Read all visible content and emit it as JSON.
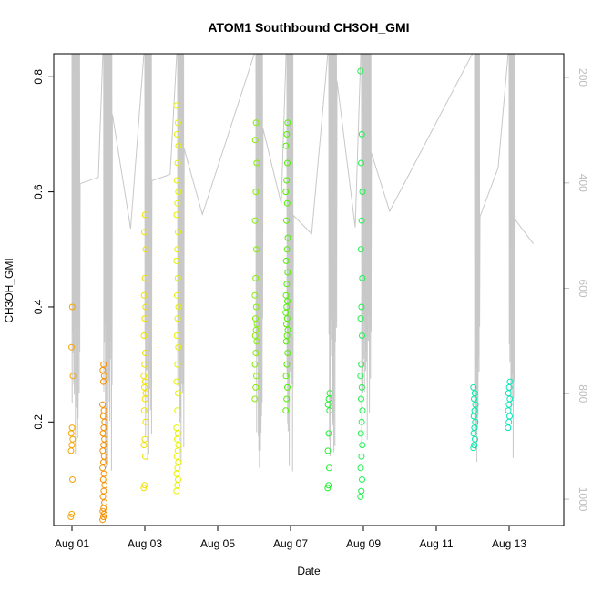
{
  "chart_data": {
    "type": "scatter",
    "title": "ATOM1 Southbound CH3OH_GMI",
    "xlabel": "Date",
    "ylabel": "CH3OH_GMI",
    "x_axis": {
      "unit": "days since Aug 01",
      "range": [
        -0.5,
        13.5
      ],
      "ticks": [
        0,
        2,
        4,
        6,
        8,
        10,
        12
      ],
      "tick_labels": [
        "Aug 01",
        "Aug 03",
        "Aug 05",
        "Aug 07",
        "Aug 09",
        "Aug 11",
        "Aug 13"
      ]
    },
    "y_axis": {
      "range": [
        0.02,
        0.84
      ],
      "ticks": [
        0.2,
        0.4,
        0.6,
        0.8
      ],
      "tick_labels": [
        "0.2",
        "0.4",
        "0.6",
        "0.8"
      ]
    },
    "right_axis": {
      "label": "",
      "range": [
        1050,
        155
      ],
      "ticks": [
        200,
        400,
        600,
        800,
        1000
      ],
      "tick_labels": [
        "200",
        "400",
        "600",
        "800",
        "1000"
      ],
      "color": "#bdbdbd"
    },
    "grid": false,
    "legend": "none",
    "altitude_line_color": "#c8c8c8",
    "series": [
      {
        "day": 0.0,
        "color": "#f5a300",
        "values": [
          0.035,
          0.04,
          0.1,
          0.15,
          0.16,
          0.17,
          0.18,
          0.19,
          0.28,
          0.33,
          0.4
        ]
      },
      {
        "day": 0.87,
        "color": "#f59000",
        "values": [
          0.03,
          0.035,
          0.04,
          0.045,
          0.05,
          0.06,
          0.07,
          0.08,
          0.09,
          0.1,
          0.11,
          0.12,
          0.13,
          0.14,
          0.15,
          0.16,
          0.17,
          0.18,
          0.19,
          0.2,
          0.21,
          0.22,
          0.23,
          0.27,
          0.28,
          0.29,
          0.3
        ]
      },
      {
        "day": 2.0,
        "color": "#f0e000",
        "values": [
          0.085,
          0.09,
          0.14,
          0.16,
          0.17,
          0.2,
          0.22,
          0.24,
          0.25,
          0.26,
          0.27,
          0.28,
          0.3,
          0.32,
          0.35,
          0.38,
          0.4,
          0.42,
          0.45,
          0.5,
          0.53,
          0.56
        ]
      },
      {
        "day": 2.9,
        "color": "#e6f000",
        "values": [
          0.08,
          0.09,
          0.1,
          0.11,
          0.12,
          0.13,
          0.14,
          0.15,
          0.16,
          0.17,
          0.18,
          0.19,
          0.22,
          0.25,
          0.27,
          0.3,
          0.33,
          0.35,
          0.38,
          0.4,
          0.42,
          0.45,
          0.48,
          0.5,
          0.53,
          0.56,
          0.58,
          0.6,
          0.62,
          0.65,
          0.68,
          0.7,
          0.72,
          0.75
        ]
      },
      {
        "day": 5.05,
        "color": "#80f000",
        "values": [
          0.24,
          0.26,
          0.28,
          0.3,
          0.32,
          0.34,
          0.35,
          0.36,
          0.37,
          0.38,
          0.4,
          0.42,
          0.45,
          0.5,
          0.55,
          0.6,
          0.65,
          0.69,
          0.72
        ]
      },
      {
        "day": 5.9,
        "color": "#50f000",
        "values": [
          0.22,
          0.24,
          0.26,
          0.28,
          0.3,
          0.32,
          0.34,
          0.35,
          0.36,
          0.37,
          0.38,
          0.39,
          0.4,
          0.41,
          0.42,
          0.44,
          0.46,
          0.48,
          0.5,
          0.52,
          0.55,
          0.58,
          0.6,
          0.62,
          0.65,
          0.68,
          0.7,
          0.72
        ]
      },
      {
        "day": 7.05,
        "color": "#20f030",
        "values": [
          0.085,
          0.09,
          0.12,
          0.15,
          0.18,
          0.22,
          0.23,
          0.24,
          0.25
        ]
      },
      {
        "day": 7.95,
        "color": "#20f050",
        "values": [
          0.07,
          0.08,
          0.1,
          0.12,
          0.14,
          0.16,
          0.18,
          0.2,
          0.22,
          0.24,
          0.26,
          0.28,
          0.3,
          0.35,
          0.38,
          0.4,
          0.45,
          0.5,
          0.55,
          0.6,
          0.65,
          0.7,
          0.81
        ]
      },
      {
        "day": 11.05,
        "color": "#00e8a8",
        "values": [
          0.155,
          0.16,
          0.17,
          0.18,
          0.19,
          0.2,
          0.21,
          0.22,
          0.23,
          0.24,
          0.25,
          0.26
        ]
      },
      {
        "day": 12.0,
        "color": "#00e8b8",
        "values": [
          0.19,
          0.2,
          0.21,
          0.22,
          0.23,
          0.24,
          0.25,
          0.26,
          0.27
        ]
      }
    ]
  }
}
